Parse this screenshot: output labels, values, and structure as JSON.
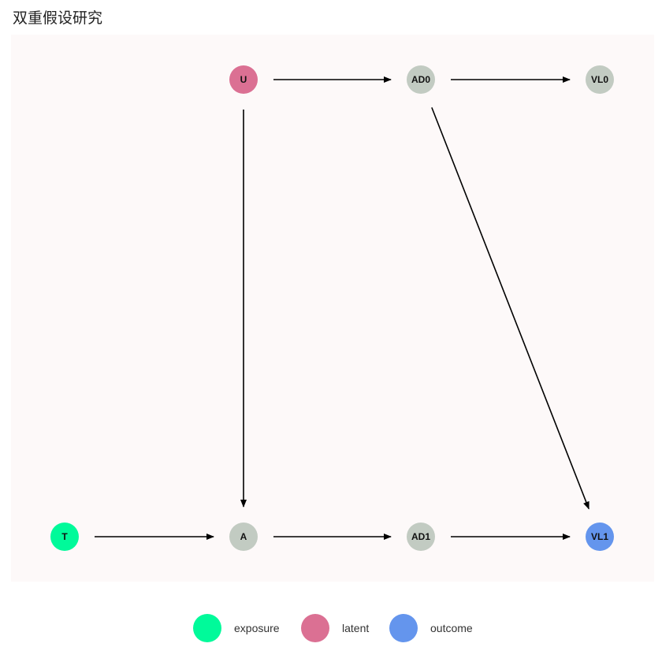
{
  "title": "双重假设研究",
  "colors": {
    "exposure": "#00fa9a",
    "latent": "#db7093",
    "outcome": "#6495ed",
    "default": "#c2cbc2",
    "edge": "#000000",
    "panel": "#fdf9f9"
  },
  "nodes": [
    {
      "id": "U",
      "label": "U",
      "type": "latent",
      "col": 1,
      "row": 0
    },
    {
      "id": "AD0",
      "label": "AD0",
      "type": "default",
      "col": 2,
      "row": 0
    },
    {
      "id": "VL0",
      "label": "VL0",
      "type": "default",
      "col": 3,
      "row": 0
    },
    {
      "id": "T",
      "label": "T",
      "type": "exposure",
      "col": 0,
      "row": 1
    },
    {
      "id": "A",
      "label": "A",
      "type": "default",
      "col": 1,
      "row": 1
    },
    {
      "id": "AD1",
      "label": "AD1",
      "type": "default",
      "col": 2,
      "row": 1
    },
    {
      "id": "VL1",
      "label": "VL1",
      "type": "outcome",
      "col": 3,
      "row": 1
    }
  ],
  "edges": [
    {
      "from": "U",
      "to": "AD0"
    },
    {
      "from": "AD0",
      "to": "VL0"
    },
    {
      "from": "U",
      "to": "A"
    },
    {
      "from": "AD0",
      "to": "VL1"
    },
    {
      "from": "T",
      "to": "A"
    },
    {
      "from": "A",
      "to": "AD1"
    },
    {
      "from": "AD1",
      "to": "VL1"
    }
  ],
  "legend": [
    {
      "label": "exposure",
      "type": "exposure"
    },
    {
      "label": "latent",
      "type": "latent"
    },
    {
      "label": "outcome",
      "type": "outcome"
    }
  ]
}
